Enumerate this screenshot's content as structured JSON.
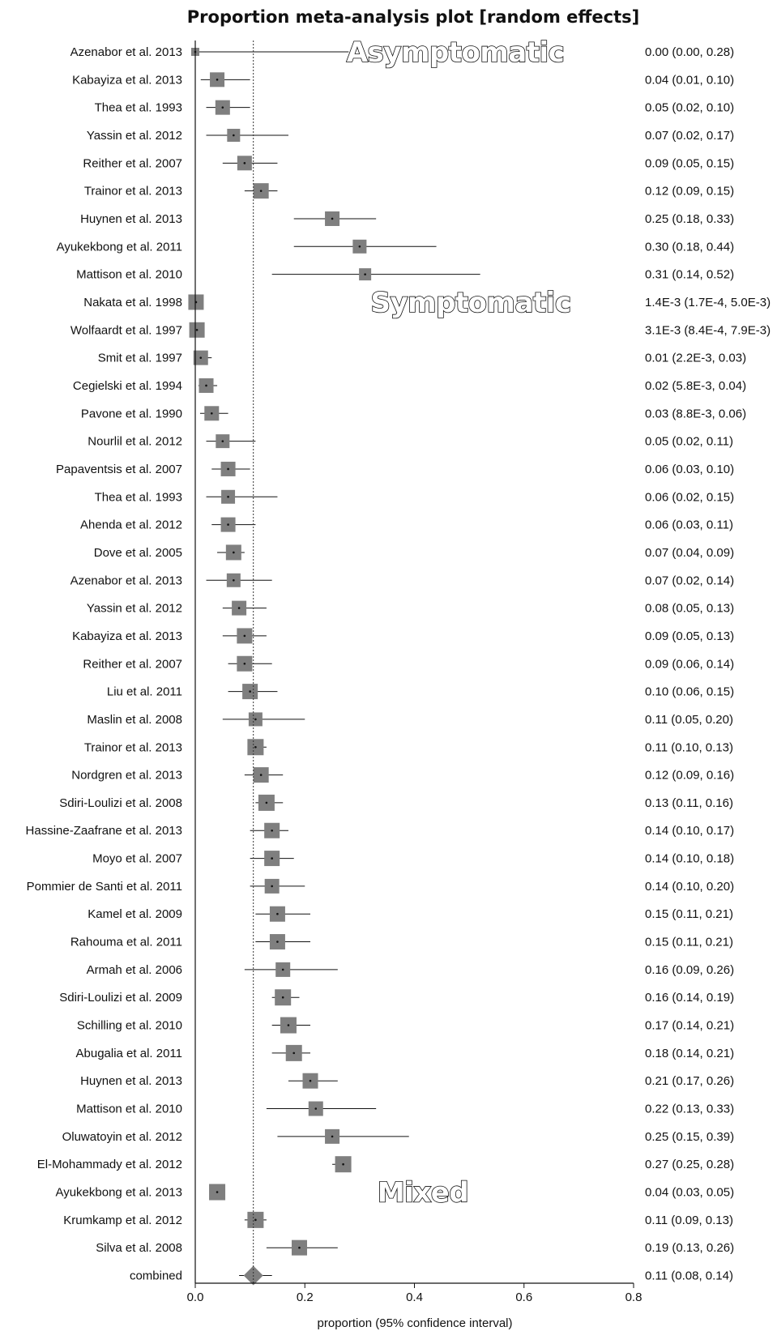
{
  "chart_data": {
    "type": "forest",
    "title": "Proportion meta-analysis plot [random effects]",
    "xlabel": "proportion (95% confidence interval)",
    "xlim": [
      0.0,
      0.8
    ],
    "xticks": [
      "0.0",
      "0.2",
      "0.4",
      "0.6",
      "0.8"
    ],
    "reference_line": 0.106,
    "group_labels": [
      "Asymptomatic",
      "Symptomatic",
      "Mixed"
    ],
    "colors": {
      "marker": "#7f7f7f",
      "diamond": "#7f7f7f",
      "line": "#111111"
    },
    "rows": [
      {
        "study": "Azenabor et al. 2013",
        "est": 0.0,
        "lo": 0.0,
        "hi": 0.28,
        "label": "0.00 (0.00, 0.28)",
        "weight": 0.5,
        "group": "Asymptomatic"
      },
      {
        "study": "Kabayiza et al. 2013",
        "est": 0.04,
        "lo": 0.01,
        "hi": 0.1,
        "label": "0.04 (0.01, 0.10)",
        "weight": 0.9,
        "group": "Asymptomatic"
      },
      {
        "study": "Thea et al. 1993",
        "est": 0.05,
        "lo": 0.02,
        "hi": 0.1,
        "label": "0.05 (0.02, 0.10)",
        "weight": 0.9,
        "group": "Asymptomatic"
      },
      {
        "study": "Yassin et al. 2012",
        "est": 0.07,
        "lo": 0.02,
        "hi": 0.17,
        "label": "0.07 (0.02, 0.17)",
        "weight": 0.8,
        "group": "Asymptomatic"
      },
      {
        "study": "Reither et al. 2007",
        "est": 0.09,
        "lo": 0.05,
        "hi": 0.15,
        "label": "0.09 (0.05, 0.15)",
        "weight": 0.9,
        "group": "Asymptomatic"
      },
      {
        "study": "Trainor et al. 2013",
        "est": 0.12,
        "lo": 0.09,
        "hi": 0.15,
        "label": "0.12 (0.09, 0.15)",
        "weight": 0.95,
        "group": "Asymptomatic"
      },
      {
        "study": "Huynen et al. 2013",
        "est": 0.25,
        "lo": 0.18,
        "hi": 0.33,
        "label": "0.25 (0.18, 0.33)",
        "weight": 0.9,
        "group": "Asymptomatic"
      },
      {
        "study": "Ayukekbong et al. 2011",
        "est": 0.3,
        "lo": 0.18,
        "hi": 0.44,
        "label": "0.30 (0.18, 0.44)",
        "weight": 0.85,
        "group": "Asymptomatic"
      },
      {
        "study": "Mattison et al. 2010",
        "est": 0.31,
        "lo": 0.14,
        "hi": 0.52,
        "label": "0.31 (0.14, 0.52)",
        "weight": 0.75,
        "group": "Asymptomatic"
      },
      {
        "study": "Nakata et al. 1998",
        "est": 0.0014,
        "lo": 0.00017,
        "hi": 0.005,
        "label": "1.4E-3 (1.7E-4, 5.0E-3)",
        "weight": 0.95,
        "group": "Symptomatic"
      },
      {
        "study": "Wolfaardt et al. 1997",
        "est": 0.0031,
        "lo": 0.00084,
        "hi": 0.0079,
        "label": "3.1E-3 (8.4E-4, 7.9E-3)",
        "weight": 0.95,
        "group": "Symptomatic"
      },
      {
        "study": "Smit et al. 1997",
        "est": 0.01,
        "lo": 0.0022,
        "hi": 0.03,
        "label": "0.01 (2.2E-3, 0.03)",
        "weight": 0.9,
        "group": "Symptomatic"
      },
      {
        "study": "Cegielski et al. 1994",
        "est": 0.02,
        "lo": 0.0058,
        "hi": 0.04,
        "label": "0.02 (5.8E-3, 0.04)",
        "weight": 0.9,
        "group": "Symptomatic"
      },
      {
        "study": "Pavone et al. 1990",
        "est": 0.03,
        "lo": 0.0088,
        "hi": 0.06,
        "label": "0.03 (8.8E-3, 0.06)",
        "weight": 0.9,
        "group": "Symptomatic"
      },
      {
        "study": "Nourlil et al. 2012",
        "est": 0.05,
        "lo": 0.02,
        "hi": 0.11,
        "label": "0.05 (0.02, 0.11)",
        "weight": 0.85,
        "group": "Symptomatic"
      },
      {
        "study": "Papaventsis et al. 2007",
        "est": 0.06,
        "lo": 0.03,
        "hi": 0.1,
        "label": "0.06 (0.03, 0.10)",
        "weight": 0.9,
        "group": "Symptomatic"
      },
      {
        "study": "Thea et al. 1993",
        "est": 0.06,
        "lo": 0.02,
        "hi": 0.15,
        "label": "0.06 (0.02, 0.15)",
        "weight": 0.85,
        "group": "Symptomatic"
      },
      {
        "study": "Ahenda et al. 2012",
        "est": 0.06,
        "lo": 0.03,
        "hi": 0.11,
        "label": "0.06 (0.03, 0.11)",
        "weight": 0.9,
        "group": "Symptomatic"
      },
      {
        "study": "Dove et al. 2005",
        "est": 0.07,
        "lo": 0.04,
        "hi": 0.09,
        "label": "0.07 (0.04, 0.09)",
        "weight": 0.95,
        "group": "Symptomatic"
      },
      {
        "study": "Azenabor et al. 2013",
        "est": 0.07,
        "lo": 0.02,
        "hi": 0.14,
        "label": "0.07 (0.02, 0.14)",
        "weight": 0.85,
        "group": "Symptomatic"
      },
      {
        "study": "Yassin et al. 2012",
        "est": 0.08,
        "lo": 0.05,
        "hi": 0.13,
        "label": "0.08 (0.05, 0.13)",
        "weight": 0.9,
        "group": "Symptomatic"
      },
      {
        "study": "Kabayiza et al. 2013",
        "est": 0.09,
        "lo": 0.05,
        "hi": 0.13,
        "label": "0.09 (0.05, 0.13)",
        "weight": 0.95,
        "group": "Symptomatic"
      },
      {
        "study": "Reither et al. 2007",
        "est": 0.09,
        "lo": 0.06,
        "hi": 0.14,
        "label": "0.09 (0.06, 0.14)",
        "weight": 0.95,
        "group": "Symptomatic"
      },
      {
        "study": "Liu et al. 2011",
        "est": 0.1,
        "lo": 0.06,
        "hi": 0.15,
        "label": "0.10 (0.06, 0.15)",
        "weight": 0.95,
        "group": "Symptomatic"
      },
      {
        "study": "Maslin et al. 2008",
        "est": 0.11,
        "lo": 0.05,
        "hi": 0.2,
        "label": "0.11 (0.05, 0.20)",
        "weight": 0.85,
        "group": "Symptomatic"
      },
      {
        "study": "Trainor et al. 2013",
        "est": 0.11,
        "lo": 0.1,
        "hi": 0.13,
        "label": "0.11 (0.10, 0.13)",
        "weight": 1.0,
        "group": "Symptomatic"
      },
      {
        "study": "Nordgren et al. 2013",
        "est": 0.12,
        "lo": 0.09,
        "hi": 0.16,
        "label": "0.12 (0.09, 0.16)",
        "weight": 0.95,
        "group": "Symptomatic"
      },
      {
        "study": "Sdiri-Loulizi et al. 2008",
        "est": 0.13,
        "lo": 0.11,
        "hi": 0.16,
        "label": "0.13 (0.11, 0.16)",
        "weight": 1.0,
        "group": "Symptomatic"
      },
      {
        "study": "Hassine-Zaafrane et al. 2013",
        "est": 0.14,
        "lo": 0.1,
        "hi": 0.17,
        "label": "0.14 (0.10, 0.17)",
        "weight": 0.95,
        "group": "Symptomatic"
      },
      {
        "study": "Moyo et al. 2007",
        "est": 0.14,
        "lo": 0.1,
        "hi": 0.18,
        "label": "0.14 (0.10, 0.18)",
        "weight": 0.95,
        "group": "Symptomatic"
      },
      {
        "study": "Pommier de  Santi et al. 2011",
        "est": 0.14,
        "lo": 0.1,
        "hi": 0.2,
        "label": "0.14 (0.10, 0.20)",
        "weight": 0.9,
        "group": "Symptomatic"
      },
      {
        "study": "Kamel et al. 2009",
        "est": 0.15,
        "lo": 0.11,
        "hi": 0.21,
        "label": "0.15 (0.11, 0.21)",
        "weight": 0.95,
        "group": "Symptomatic"
      },
      {
        "study": "Rahouma et al. 2011",
        "est": 0.15,
        "lo": 0.11,
        "hi": 0.21,
        "label": "0.15 (0.11, 0.21)",
        "weight": 0.95,
        "group": "Symptomatic"
      },
      {
        "study": "Armah et al. 2006",
        "est": 0.16,
        "lo": 0.09,
        "hi": 0.26,
        "label": "0.16 (0.09, 0.26)",
        "weight": 0.9,
        "group": "Symptomatic"
      },
      {
        "study": "Sdiri-Loulizi et al. 2009",
        "est": 0.16,
        "lo": 0.14,
        "hi": 0.19,
        "label": "0.16 (0.14, 0.19)",
        "weight": 1.0,
        "group": "Symptomatic"
      },
      {
        "study": "Schilling et al. 2010",
        "est": 0.17,
        "lo": 0.14,
        "hi": 0.21,
        "label": "0.17 (0.14, 0.21)",
        "weight": 1.0,
        "group": "Symptomatic"
      },
      {
        "study": "Abugalia et al. 2011",
        "est": 0.18,
        "lo": 0.14,
        "hi": 0.21,
        "label": "0.18 (0.14, 0.21)",
        "weight": 1.0,
        "group": "Symptomatic"
      },
      {
        "study": "Huynen et al. 2013",
        "est": 0.21,
        "lo": 0.17,
        "hi": 0.26,
        "label": "0.21 (0.17, 0.26)",
        "weight": 0.95,
        "group": "Symptomatic"
      },
      {
        "study": "Mattison et al. 2010",
        "est": 0.22,
        "lo": 0.13,
        "hi": 0.33,
        "label": "0.22 (0.13, 0.33)",
        "weight": 0.9,
        "group": "Symptomatic"
      },
      {
        "study": "Oluwatoyin et al. 2012",
        "est": 0.25,
        "lo": 0.15,
        "hi": 0.39,
        "label": "0.25 (0.15, 0.39)",
        "weight": 0.9,
        "group": "Symptomatic"
      },
      {
        "study": "El-Mohammady et al. 2012",
        "est": 0.27,
        "lo": 0.25,
        "hi": 0.28,
        "label": "0.27 (0.25, 0.28)",
        "weight": 1.0,
        "group": "Symptomatic"
      },
      {
        "study": "Ayukekbong et al. 2013",
        "est": 0.04,
        "lo": 0.03,
        "hi": 0.05,
        "label": "0.04 (0.03, 0.05)",
        "weight": 1.0,
        "group": "Mixed"
      },
      {
        "study": "Krumkamp et al. 2012",
        "est": 0.11,
        "lo": 0.09,
        "hi": 0.13,
        "label": "0.11 (0.09, 0.13)",
        "weight": 1.0,
        "group": "Mixed"
      },
      {
        "study": "Silva et al. 2008",
        "est": 0.19,
        "lo": 0.13,
        "hi": 0.26,
        "label": "0.19 (0.13, 0.26)",
        "weight": 0.95,
        "group": "Mixed"
      }
    ],
    "combined": {
      "study": "combined",
      "est": 0.106,
      "lo": 0.08,
      "hi": 0.14,
      "label": "0.11 (0.08, 0.14)"
    }
  }
}
